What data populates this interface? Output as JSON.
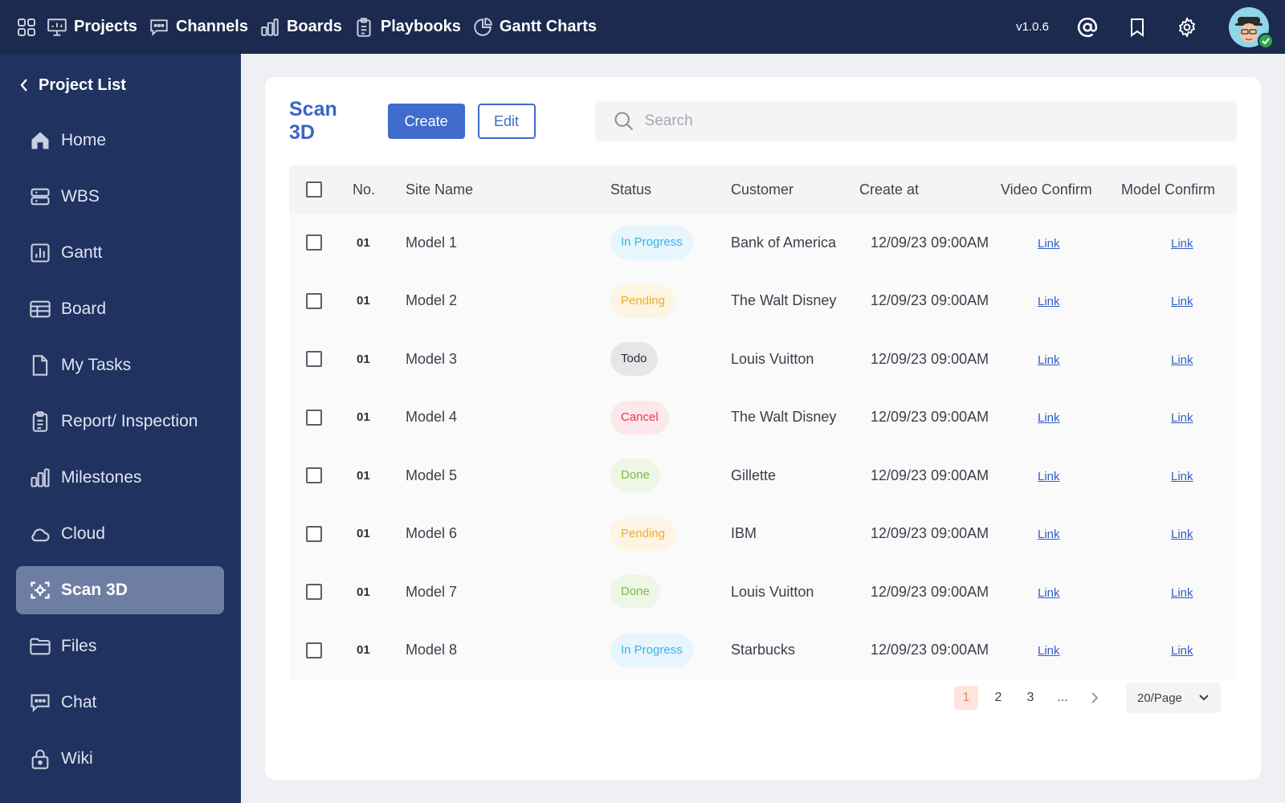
{
  "topbar": {
    "nav": [
      {
        "label": "Projects",
        "icon": "presentation-icon"
      },
      {
        "label": "Channels",
        "icon": "chat-bubble-icon"
      },
      {
        "label": "Boards",
        "icon": "bar-chart-icon"
      },
      {
        "label": "Playbooks",
        "icon": "clipboard-icon"
      },
      {
        "label": "Gantt Charts",
        "icon": "pie-chart-icon"
      }
    ],
    "version": "v1.0.6",
    "colors": {
      "background": "#1b2a4e",
      "online": "#2ea44f"
    }
  },
  "sidebar": {
    "back_label": "Project List",
    "items": [
      {
        "label": "Home",
        "icon": "home-icon"
      },
      {
        "label": "WBS",
        "icon": "server-icon"
      },
      {
        "label": "Gantt",
        "icon": "chart-square-icon"
      },
      {
        "label": "Board",
        "icon": "table-icon"
      },
      {
        "label": "My Tasks",
        "icon": "document-icon"
      },
      {
        "label": "Report/ Inspection",
        "icon": "clipboard-icon"
      },
      {
        "label": "Milestones",
        "icon": "bar-chart-icon"
      },
      {
        "label": "Cloud",
        "icon": "cloud-icon"
      },
      {
        "label": "Scan 3D",
        "icon": "scan-icon",
        "active": true
      },
      {
        "label": "Files",
        "icon": "folder-icon"
      },
      {
        "label": "Chat",
        "icon": "chat-bubble-icon"
      },
      {
        "label": "Wiki",
        "icon": "lock-icon"
      }
    ]
  },
  "main": {
    "title": "Scan 3D",
    "create_label": "Create",
    "edit_label": "Edit",
    "search_placeholder": "Search",
    "columns": [
      "No.",
      "Site Name",
      "Status",
      "Customer",
      "Create at",
      "Video Confirm",
      "Model Confirm"
    ],
    "rows": [
      {
        "no": "01",
        "site": "Model 1",
        "status": "In Progress",
        "status_key": "inprogress",
        "customer": "Bank of America",
        "date": "12/09/23  09:00AM",
        "video": "Link",
        "model": "Link"
      },
      {
        "no": "01",
        "site": "Model 2",
        "status": "Pending",
        "status_key": "pending",
        "customer": "The Walt Disney",
        "date": "12/09/23  09:00AM",
        "video": "Link",
        "model": "Link"
      },
      {
        "no": "01",
        "site": "Model 3",
        "status": "Todo",
        "status_key": "todo",
        "customer": "Louis Vuitton",
        "date": "12/09/23  09:00AM",
        "video": "Link",
        "model": "Link"
      },
      {
        "no": "01",
        "site": "Model 4",
        "status": "Cancel",
        "status_key": "cancel",
        "customer": "The Walt Disney",
        "date": "12/09/23  09:00AM",
        "video": "Link",
        "model": "Link"
      },
      {
        "no": "01",
        "site": "Model 5",
        "status": "Done",
        "status_key": "done",
        "customer": "Gillette",
        "date": "12/09/23  09:00AM",
        "video": "Link",
        "model": "Link"
      },
      {
        "no": "01",
        "site": "Model 6",
        "status": "Pending",
        "status_key": "pending",
        "customer": "IBM",
        "date": "12/09/23  09:00AM",
        "video": "Link",
        "model": "Link"
      },
      {
        "no": "01",
        "site": "Model 7",
        "status": "Done",
        "status_key": "done",
        "customer": "Louis Vuitton",
        "date": "12/09/23  09:00AM",
        "video": "Link",
        "model": "Link"
      },
      {
        "no": "01",
        "site": "Model 8",
        "status": "In Progress",
        "status_key": "inprogress",
        "customer": "Starbucks",
        "date": "12/09/23  09:00AM",
        "video": "Link",
        "model": "Link"
      }
    ],
    "status_colors": {
      "inprogress": "#3ab0e6",
      "pending": "#efac2e",
      "todo": "#2a2d33",
      "cancel": "#e0394d",
      "done": "#76bf3c"
    },
    "pagination": {
      "pages": [
        "1",
        "2",
        "3",
        "..."
      ],
      "current": "1",
      "page_size": "20/Page"
    },
    "accent": "#3f6ccd"
  }
}
